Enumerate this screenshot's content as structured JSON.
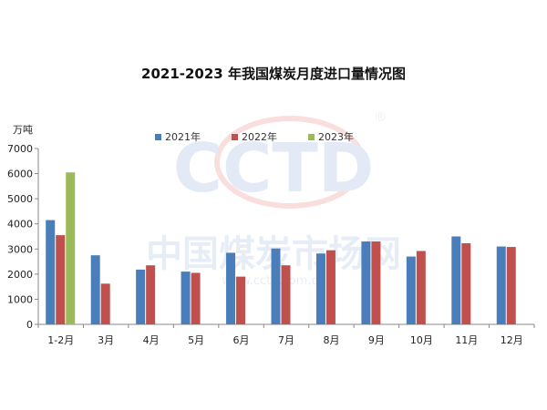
{
  "chart_data": {
    "type": "bar",
    "title": "2021-2023 年我国煤炭月度进口量情况图",
    "ylabel": "万吨",
    "ylim": [
      0,
      7000
    ],
    "yticks": [
      0,
      1000,
      2000,
      3000,
      4000,
      5000,
      6000,
      7000
    ],
    "categories": [
      "1-2月",
      "3月",
      "4月",
      "5月",
      "6月",
      "7月",
      "8月",
      "9月",
      "10月",
      "11月",
      "12月"
    ],
    "series": [
      {
        "name": "2021年",
        "color": "#4a7ebb",
        "values": [
          4150,
          2750,
          2180,
          2100,
          2850,
          3020,
          2820,
          3300,
          2700,
          3500,
          3100
        ]
      },
      {
        "name": "2022年",
        "color": "#c0504d",
        "values": [
          3550,
          1620,
          2350,
          2050,
          1900,
          2350,
          2950,
          3300,
          2920,
          3230,
          3080
        ]
      },
      {
        "name": "2023年",
        "color": "#9bbb59",
        "values": [
          6050,
          null,
          null,
          null,
          null,
          null,
          null,
          null,
          null,
          null,
          null
        ]
      }
    ],
    "legend_position": "top",
    "grid": false
  },
  "watermark": {
    "logo": "CCTD",
    "text": "中国煤炭市场网",
    "url": "www.cctd.com.cn",
    "registered_mark": "®"
  }
}
